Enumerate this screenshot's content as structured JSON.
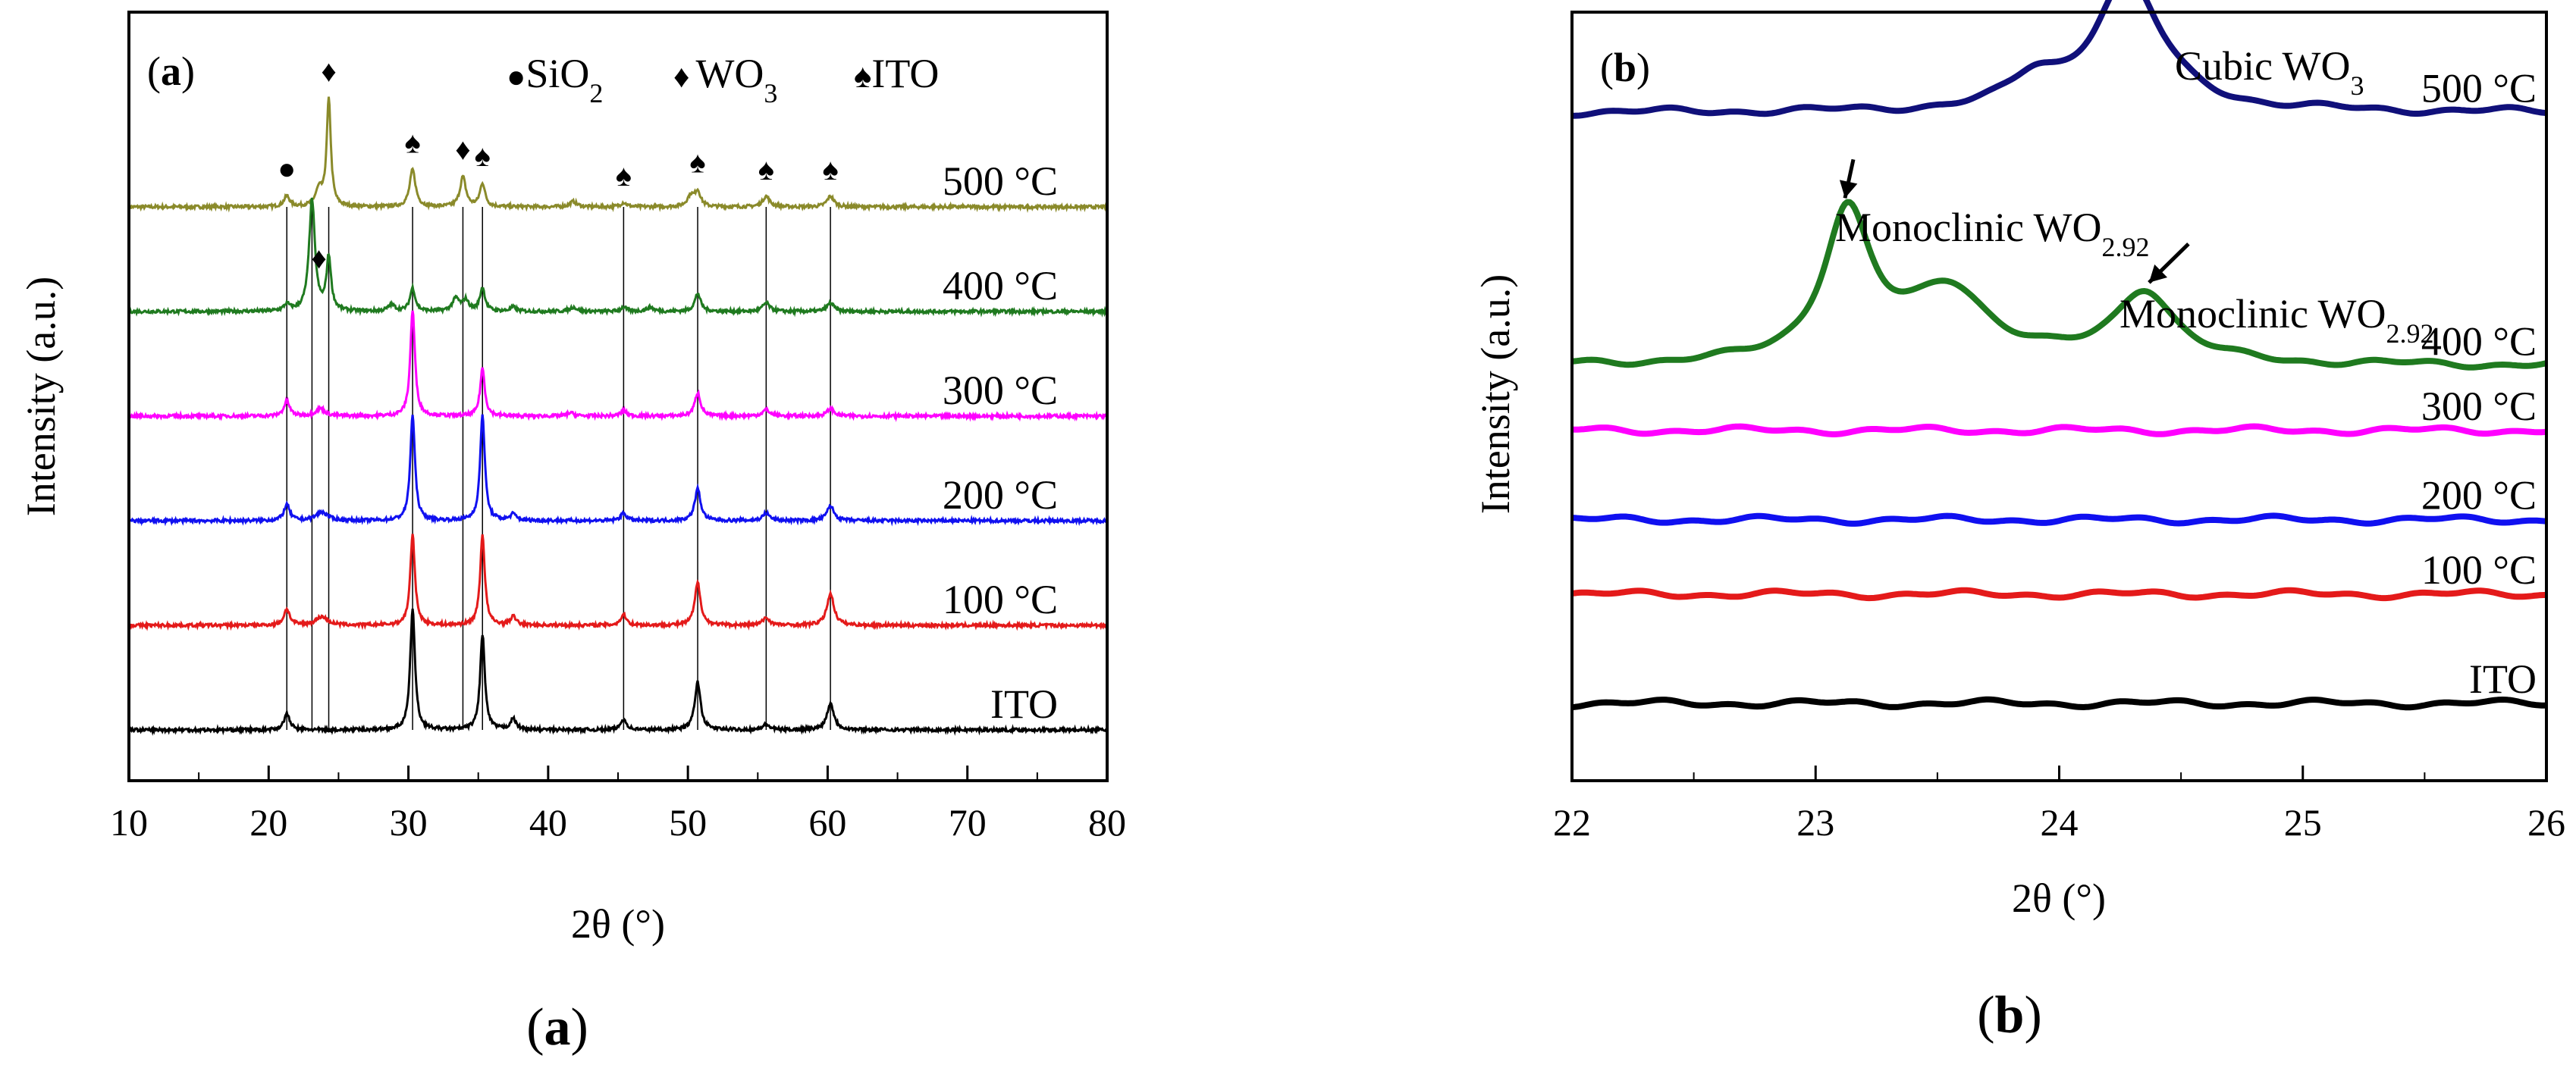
{
  "chart_data": [
    {
      "type": "line",
      "panel_tag": "(a)",
      "caption": "(a)",
      "xlabel": "2θ (°)",
      "ylabel": "Intensity (a.u.)",
      "xlim": [
        10,
        80
      ],
      "x_ticks": [
        10,
        20,
        30,
        40,
        50,
        60,
        70,
        80
      ],
      "legend": [
        {
          "marker": "●",
          "text": "SiO",
          "sub": "2"
        },
        {
          "marker": "♦",
          "text": "WO",
          "sub": "3"
        },
        {
          "marker": "♠",
          "text": "ITO",
          "sub": ""
        }
      ],
      "series": [
        {
          "name": "500 °C",
          "label": "500 °C",
          "color": "#8a8a2a",
          "baseline": 4.95,
          "peaks": [
            [
              21.3,
              0.1,
              0.25
            ],
            [
              23.6,
              0.15,
              0.3
            ],
            [
              24.3,
              1.0,
              0.18
            ],
            [
              30.3,
              0.35,
              0.25
            ],
            [
              33.9,
              0.28,
              0.25
            ],
            [
              35.3,
              0.22,
              0.22
            ],
            [
              41.8,
              0.05,
              0.3
            ],
            [
              45.4,
              0.04,
              0.25
            ],
            [
              50.2,
              0.1,
              0.3
            ],
            [
              50.7,
              0.14,
              0.25
            ],
            [
              55.6,
              0.1,
              0.3
            ],
            [
              60.2,
              0.1,
              0.3
            ]
          ]
        },
        {
          "name": "400 °C",
          "label": "400 °C",
          "color": "#1f7a1f",
          "baseline": 3.95,
          "peaks": [
            [
              21.3,
              0.06,
              0.25
            ],
            [
              23.1,
              1.05,
              0.25
            ],
            [
              24.3,
              0.5,
              0.2
            ],
            [
              28.8,
              0.06,
              0.3
            ],
            [
              30.3,
              0.22,
              0.22
            ],
            [
              33.4,
              0.12,
              0.3
            ],
            [
              34.1,
              0.1,
              0.25
            ],
            [
              35.3,
              0.22,
              0.22
            ],
            [
              37.5,
              0.04,
              0.25
            ],
            [
              41.8,
              0.04,
              0.3
            ],
            [
              45.4,
              0.04,
              0.25
            ],
            [
              47.3,
              0.04,
              0.3
            ],
            [
              50.7,
              0.17,
              0.25
            ],
            [
              55.6,
              0.08,
              0.3
            ],
            [
              60.2,
              0.08,
              0.3
            ]
          ]
        },
        {
          "name": "300 °C",
          "label": "300 °C",
          "color": "#ff00ff",
          "baseline": 2.95,
          "peaks": [
            [
              21.3,
              0.14,
              0.25
            ],
            [
              23.7,
              0.07,
              0.4
            ],
            [
              30.3,
              1.0,
              0.2
            ],
            [
              35.3,
              0.45,
              0.2
            ],
            [
              41.6,
              0.03,
              0.3
            ],
            [
              45.4,
              0.05,
              0.25
            ],
            [
              50.7,
              0.22,
              0.25
            ],
            [
              55.6,
              0.06,
              0.3
            ],
            [
              60.2,
              0.07,
              0.3
            ]
          ]
        },
        {
          "name": "200 °C",
          "label": "200 °C",
          "color": "#1010f0",
          "baseline": 1.95,
          "peaks": [
            [
              21.3,
              0.15,
              0.25
            ],
            [
              23.8,
              0.08,
              0.5
            ],
            [
              30.3,
              1.0,
              0.2
            ],
            [
              35.3,
              1.0,
              0.2
            ],
            [
              37.5,
              0.06,
              0.25
            ],
            [
              45.4,
              0.07,
              0.25
            ],
            [
              50.7,
              0.3,
              0.25
            ],
            [
              55.6,
              0.07,
              0.3
            ],
            [
              60.2,
              0.14,
              0.3
            ]
          ]
        },
        {
          "name": "100 °C",
          "label": "100 °C",
          "color": "#e41a1a",
          "baseline": 0.95,
          "peaks": [
            [
              21.3,
              0.15,
              0.25
            ],
            [
              23.8,
              0.08,
              0.5
            ],
            [
              30.3,
              0.85,
              0.2
            ],
            [
              35.3,
              0.85,
              0.2
            ],
            [
              37.5,
              0.08,
              0.25
            ],
            [
              45.4,
              0.1,
              0.25
            ],
            [
              50.7,
              0.4,
              0.25
            ],
            [
              55.6,
              0.07,
              0.3
            ],
            [
              60.2,
              0.3,
              0.3
            ]
          ]
        },
        {
          "name": "ITO",
          "label": "ITO",
          "color": "#000000",
          "baseline": -0.05,
          "peaks": [
            [
              21.3,
              0.15,
              0.25
            ],
            [
              30.3,
              1.15,
              0.2
            ],
            [
              35.3,
              0.9,
              0.2
            ],
            [
              37.5,
              0.1,
              0.25
            ],
            [
              45.4,
              0.1,
              0.25
            ],
            [
              50.7,
              0.45,
              0.25
            ],
            [
              55.6,
              0.05,
              0.3
            ],
            [
              60.2,
              0.25,
              0.3
            ]
          ]
        }
      ],
      "reference_lines": [
        21.3,
        23.1,
        24.3,
        30.3,
        33.9,
        35.3,
        45.4,
        50.7,
        55.6,
        60.2
      ],
      "peak_markers": [
        {
          "symbol": "●",
          "x": 21.3,
          "series": "500 °C"
        },
        {
          "symbol": "♦",
          "x": 24.3,
          "series": "500 °C"
        },
        {
          "symbol": "♦",
          "x": 23.6,
          "series": "400 °C"
        },
        {
          "symbol": "♠",
          "x": 30.3,
          "series": "500 °C"
        },
        {
          "symbol": "♦",
          "x": 33.9,
          "series": "500 °C"
        },
        {
          "symbol": "♠",
          "x": 35.3,
          "series": "500 °C"
        },
        {
          "symbol": "♠",
          "x": 45.4,
          "series": "500 °C"
        },
        {
          "symbol": "♠",
          "x": 50.7,
          "series": "500 °C"
        },
        {
          "symbol": "♠",
          "x": 55.6,
          "series": "500 °C"
        },
        {
          "symbol": "♠",
          "x": 60.2,
          "series": "500 °C"
        }
      ]
    },
    {
      "type": "line",
      "panel_tag": "(b)",
      "caption": "(b)",
      "xlabel": "2θ (°)",
      "ylabel": "Intensity (a.u.)",
      "xlim": [
        22,
        26
      ],
      "x_ticks": [
        22,
        23,
        24,
        25,
        26
      ],
      "series": [
        {
          "name": "500 °C",
          "label": "500 °C",
          "color": "#10107a",
          "baseline": 5.4,
          "peaks": [
            [
              24.28,
              1.0,
              0.17
            ],
            [
              23.9,
              0.2,
              0.12
            ]
          ]
        },
        {
          "name": "400 °C",
          "label": "400 °C",
          "color": "#1f7a1f",
          "baseline": 2.85,
          "peaks": [
            [
              23.13,
              1.12,
              0.12
            ],
            [
              23.55,
              0.55,
              0.2
            ],
            [
              24.35,
              0.55,
              0.15
            ]
          ]
        },
        {
          "name": "300 °C",
          "label": "300 °C",
          "color": "#ff00ff",
          "baseline": 2.2,
          "peaks": []
        },
        {
          "name": "200 °C",
          "label": "200 °C",
          "color": "#1010f0",
          "baseline": 1.3,
          "peaks": []
        },
        {
          "name": "100 °C",
          "label": "100 °C",
          "color": "#e41a1a",
          "baseline": 0.55,
          "peaks": []
        },
        {
          "name": "ITO",
          "label": "ITO",
          "color": "#000000",
          "baseline": -0.55,
          "peaks": []
        }
      ],
      "annotations": [
        {
          "text": "Cubic WO",
          "sub": "3",
          "x": 24.28,
          "series": "500 °C"
        },
        {
          "text": "Monoclinic WO",
          "sub": "2.92",
          "x": 23.13,
          "series": "400 °C"
        },
        {
          "text": "Monoclinic WO",
          "sub": "2.92",
          "x": 24.35,
          "series": "400 °C"
        }
      ]
    }
  ]
}
